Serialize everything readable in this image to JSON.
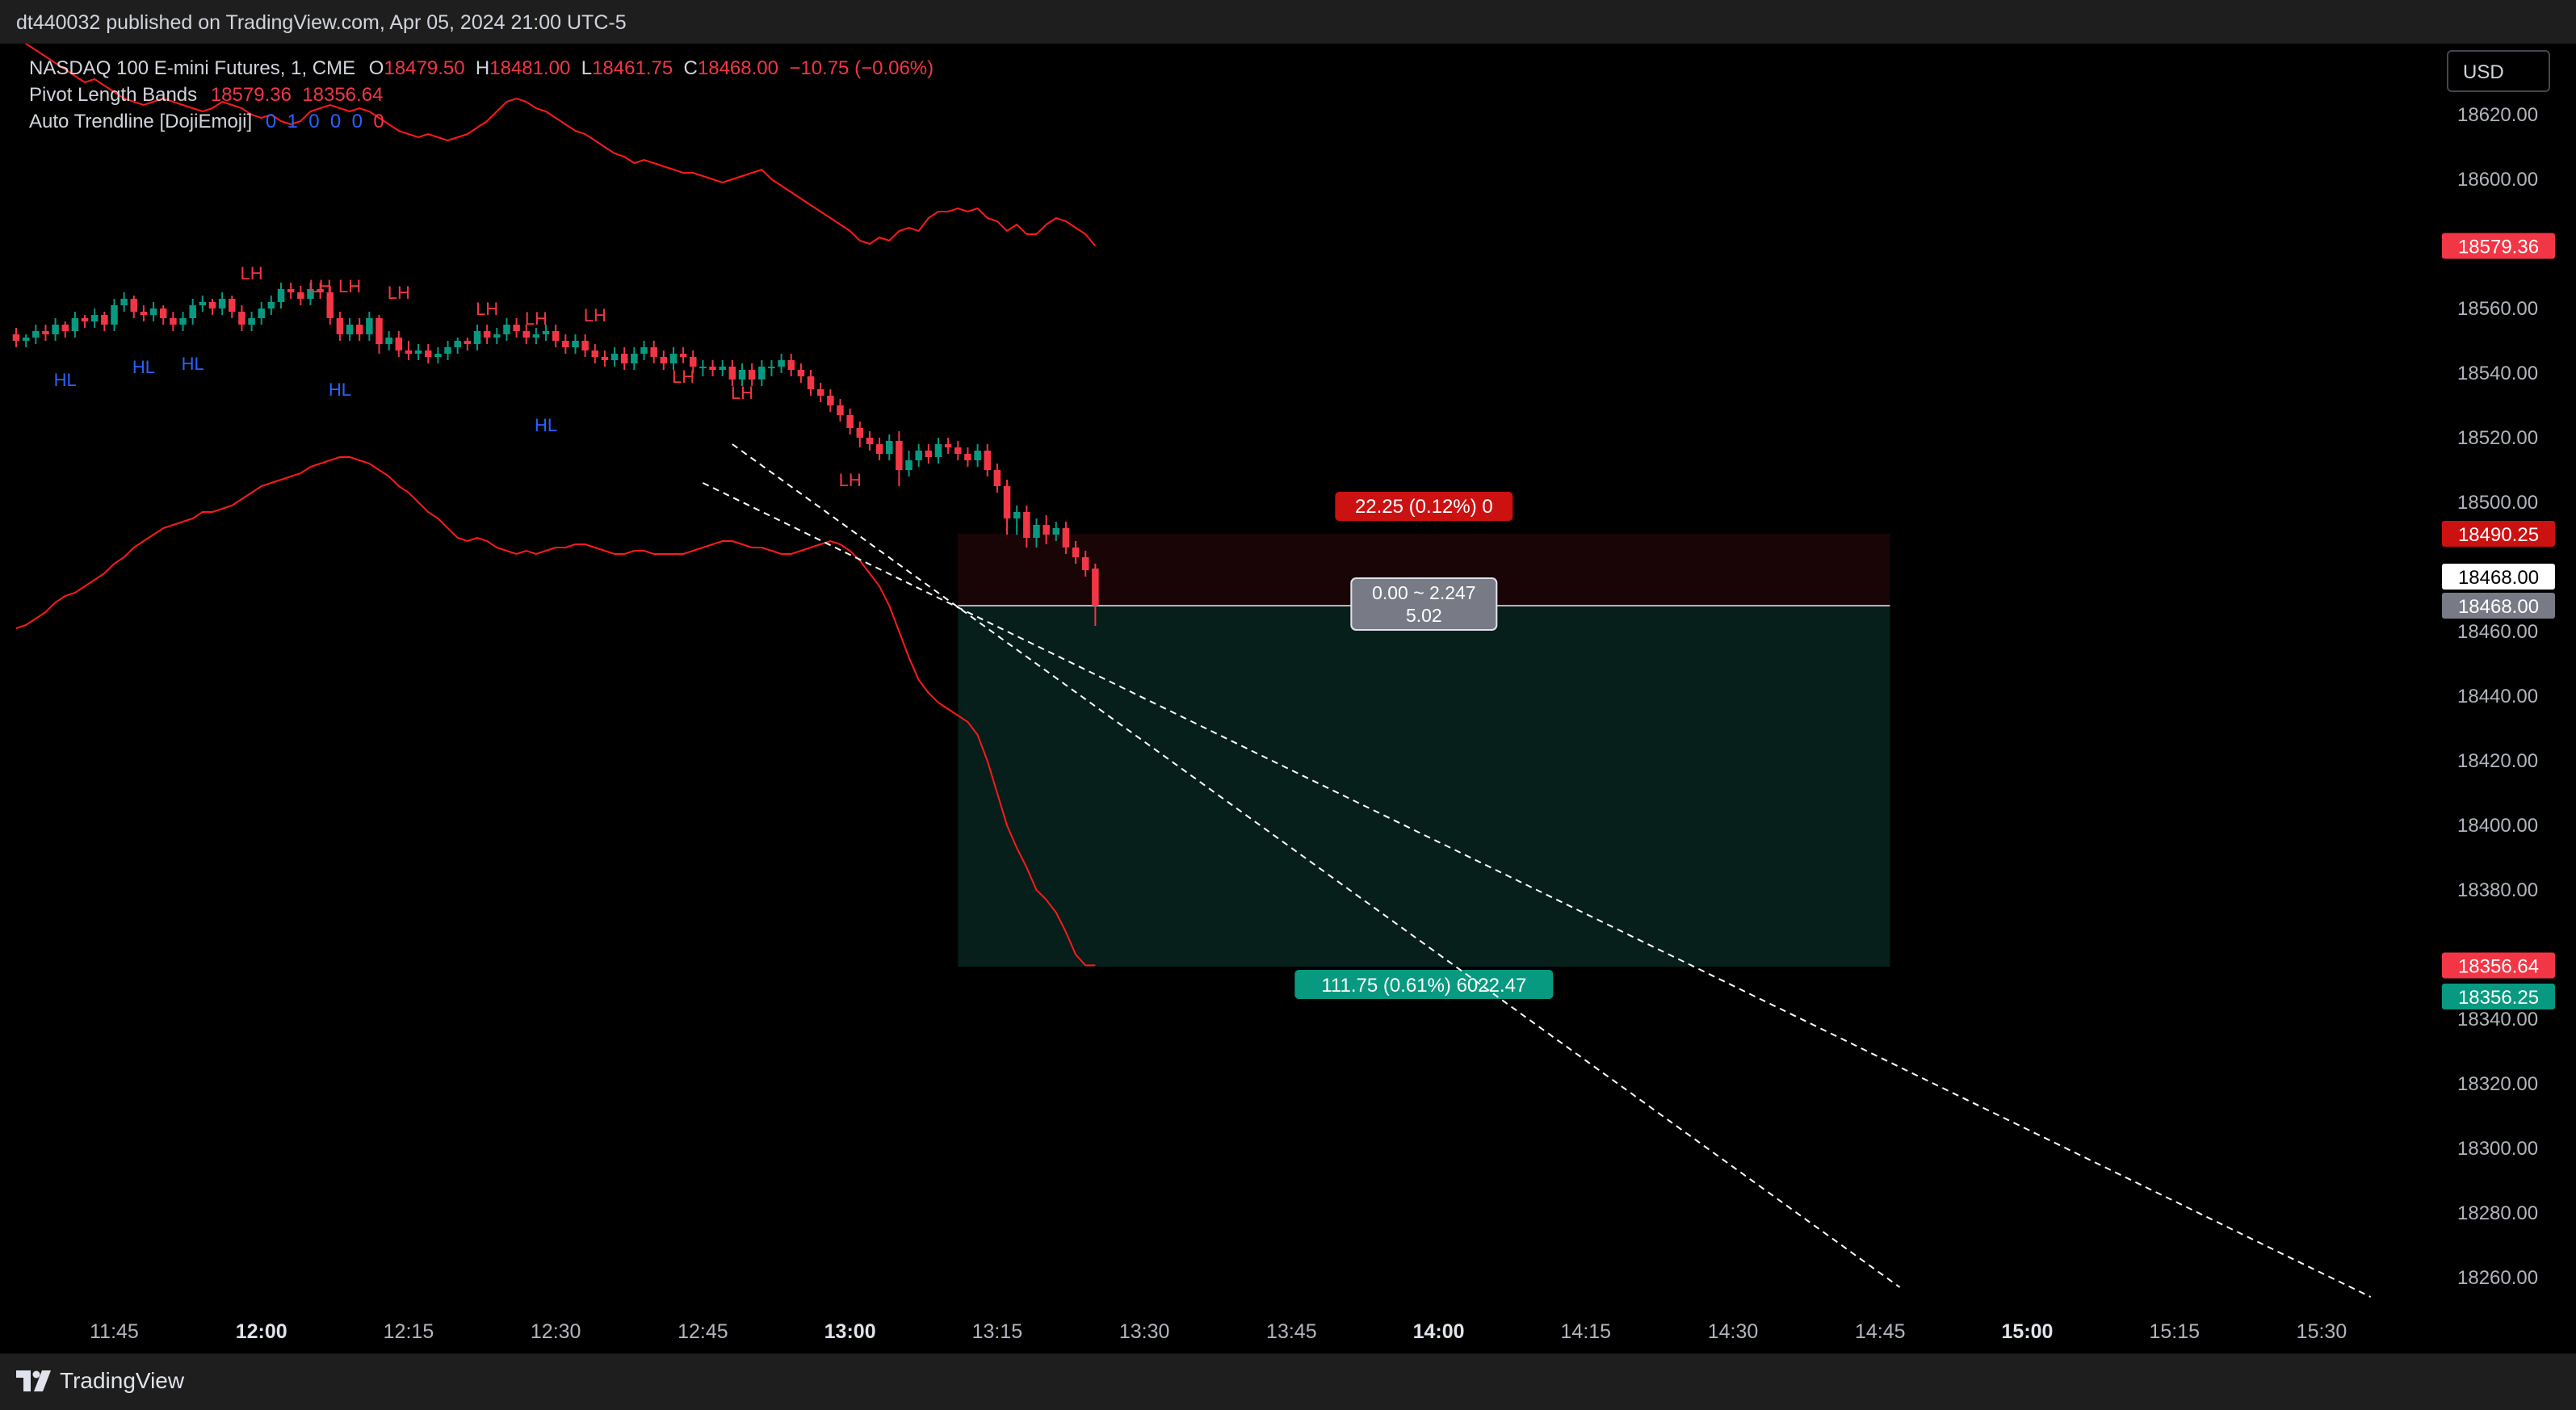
{
  "header": {
    "published": "dt440032 published on TradingView.com, Apr 05, 2024 21:00 UTC-5"
  },
  "footer": {
    "brand": "TradingView"
  },
  "currency": "USD",
  "legend": {
    "symbol": "NASDAQ 100 E-mini Futures, 1, CME",
    "open_label": "O",
    "open": "18479.50",
    "high_label": "H",
    "high": "18481.00",
    "low_label": "L",
    "low": "18461.75",
    "close_label": "C",
    "close": "18468.00",
    "change": "−10.75 (−0.06%)",
    "ind1_name": "Pivot Length Bands",
    "ind1_v1": "18579.36",
    "ind1_v2": "18356.64",
    "ind2_name": "Auto Trendline [DojiEmoji]",
    "ind2_vals": [
      "0",
      "1",
      "0",
      "0",
      "0",
      "0"
    ]
  },
  "colors": {
    "up": "#089981",
    "down": "#f23645",
    "band": "#ff1a1a",
    "hl": "#2962ff",
    "target": "#089981",
    "stop": "#cc1111"
  },
  "chart_data": {
    "type": "candlestick",
    "y_range": [
      18250,
      18642
    ],
    "y_ticks": [
      18620,
      18600,
      18580,
      18560,
      18540,
      18520,
      18500,
      18480,
      18460,
      18440,
      18420,
      18400,
      18380,
      18360,
      18340,
      18320,
      18300,
      18280,
      18260
    ],
    "y_tick_labels": [
      "18620.00",
      "18600.00",
      "18560.00",
      "18540.00",
      "18520.00",
      "18500.00",
      "18460.00",
      "18440.00",
      "18420.00",
      "18400.00",
      "18380.00",
      "18340.00",
      "18320.00",
      "18300.00",
      "18280.00",
      "18260.00"
    ],
    "y_tick_label_values": [
      18620,
      18600,
      18560,
      18540,
      18520,
      18500,
      18460,
      18440,
      18420,
      18400,
      18380,
      18340,
      18320,
      18300,
      18280,
      18260
    ],
    "x_range_minutes": [
      695,
      937
    ],
    "x_ticks": [
      {
        "t": 705,
        "label": "11:45",
        "bold": false
      },
      {
        "t": 720,
        "label": "12:00",
        "bold": true
      },
      {
        "t": 735,
        "label": "12:15",
        "bold": false
      },
      {
        "t": 750,
        "label": "12:30",
        "bold": false
      },
      {
        "t": 765,
        "label": "12:45",
        "bold": false
      },
      {
        "t": 780,
        "label": "13:00",
        "bold": true
      },
      {
        "t": 795,
        "label": "13:15",
        "bold": false
      },
      {
        "t": 810,
        "label": "13:30",
        "bold": false
      },
      {
        "t": 825,
        "label": "13:45",
        "bold": false
      },
      {
        "t": 840,
        "label": "14:00",
        "bold": true
      },
      {
        "t": 855,
        "label": "14:15",
        "bold": false
      },
      {
        "t": 870,
        "label": "14:30",
        "bold": false
      },
      {
        "t": 885,
        "label": "14:45",
        "bold": false
      },
      {
        "t": 900,
        "label": "15:00",
        "bold": true
      },
      {
        "t": 915,
        "label": "15:15",
        "bold": false
      },
      {
        "t": 930,
        "label": "15:30",
        "bold": false
      }
    ],
    "candles": {
      "start_t": 695,
      "close": [
        18550,
        18551,
        18553,
        18552,
        18555,
        18553,
        18557,
        18556,
        18558,
        18555,
        18561,
        18563,
        18559,
        18558,
        18560,
        18557,
        18555,
        18557,
        18561,
        18562,
        18560,
        18563,
        18559,
        18555,
        18557,
        18560,
        18562,
        18566,
        18565,
        18563,
        18566,
        18565,
        18557,
        18552,
        18555,
        18552,
        18557,
        18549,
        18551,
        18547,
        18546,
        18547,
        18545,
        18546,
        18548,
        18550,
        18549,
        18553,
        18551,
        18552,
        18555,
        18553,
        18551,
        18552,
        18553,
        18550,
        18548,
        18550,
        18547,
        18545,
        18544,
        18546,
        18543,
        18546,
        18548,
        18545,
        18543,
        18546,
        18545,
        18542,
        18542,
        18541,
        18542,
        18538,
        18541,
        18538,
        18542,
        18542,
        18544,
        18541,
        18539,
        18535,
        18533,
        18530,
        18527,
        18523,
        18520,
        18518,
        18515,
        18519,
        18510,
        18513,
        18516,
        18514,
        18518,
        18517,
        18515,
        18513,
        18516,
        18510,
        18505,
        18495,
        18497,
        18489,
        18493,
        18490,
        18492,
        18486,
        18483,
        18479,
        18468
      ],
      "open": [
        18552,
        18550,
        18551,
        18553,
        18552,
        18555,
        18553,
        18557,
        18556,
        18558,
        18555,
        18561,
        18563,
        18559,
        18558,
        18560,
        18557,
        18555,
        18557,
        18561,
        18562,
        18560,
        18563,
        18559,
        18555,
        18557,
        18560,
        18562,
        18566,
        18565,
        18563,
        18566,
        18565,
        18557,
        18552,
        18555,
        18552,
        18557,
        18549,
        18551,
        18547,
        18546,
        18547,
        18545,
        18546,
        18548,
        18550,
        18549,
        18553,
        18551,
        18552,
        18555,
        18553,
        18551,
        18552,
        18553,
        18550,
        18548,
        18550,
        18547,
        18545,
        18544,
        18546,
        18543,
        18546,
        18548,
        18545,
        18543,
        18546,
        18545,
        18542,
        18542,
        18541,
        18542,
        18538,
        18541,
        18538,
        18542,
        18542,
        18544,
        18541,
        18539,
        18535,
        18533,
        18530,
        18527,
        18523,
        18520,
        18518,
        18515,
        18519,
        18510,
        18513,
        18516,
        18514,
        18518,
        18517,
        18515,
        18513,
        18516,
        18510,
        18505,
        18495,
        18497,
        18489,
        18493,
        18490,
        18492,
        18486,
        18483,
        18479.5
      ],
      "high": [
        18554,
        18552,
        18555,
        18555,
        18557,
        18556,
        18559,
        18558,
        18560,
        18559,
        18563,
        18565,
        18564,
        18561,
        18562,
        18561,
        18559,
        18559,
        18563,
        18564,
        18563,
        18565,
        18564,
        18561,
        18559,
        18562,
        18564,
        18568,
        18568,
        18567,
        18568,
        18568,
        18567,
        18559,
        18557,
        18557,
        18559,
        18558,
        18553,
        18553,
        18550,
        18549,
        18549,
        18548,
        18550,
        18551,
        18551,
        18555,
        18555,
        18554,
        18557,
        18557,
        18555,
        18554,
        18555,
        18555,
        18552,
        18552,
        18552,
        18549,
        18547,
        18548,
        18548,
        18548,
        18550,
        18550,
        18547,
        18548,
        18548,
        18547,
        18544,
        18544,
        18544,
        18544,
        18543,
        18543,
        18544,
        18544,
        18546,
        18546,
        18543,
        18541,
        18537,
        18535,
        18532,
        18529,
        18525,
        18522,
        18520,
        18521,
        18522,
        18516,
        18518,
        18518,
        18520,
        18520,
        18519,
        18517,
        18518,
        18518,
        18512,
        18507,
        18499,
        18499,
        18495,
        18496,
        18494,
        18494,
        18488,
        18485,
        18481
      ],
      "low": [
        18548,
        18548,
        18549,
        18550,
        18550,
        18551,
        18551,
        18554,
        18554,
        18553,
        18553,
        18559,
        18557,
        18556,
        18556,
        18555,
        18553,
        18553,
        18555,
        18559,
        18558,
        18558,
        18557,
        18553,
        18553,
        18555,
        18558,
        18560,
        18563,
        18561,
        18561,
        18563,
        18555,
        18550,
        18550,
        18550,
        18550,
        18546,
        18547,
        18545,
        18544,
        18544,
        18543,
        18543,
        18544,
        18546,
        18547,
        18547,
        18549,
        18549,
        18550,
        18551,
        18549,
        18549,
        18550,
        18548,
        18546,
        18546,
        18545,
        18543,
        18542,
        18542,
        18541,
        18541,
        18544,
        18543,
        18541,
        18541,
        18543,
        18540,
        18539,
        18539,
        18539,
        18536,
        18536,
        18536,
        18536,
        18539,
        18540,
        18539,
        18537,
        18533,
        18531,
        18528,
        18525,
        18521,
        18517,
        18516,
        18513,
        18513,
        18505,
        18508,
        18511,
        18512,
        18512,
        18515,
        18513,
        18511,
        18511,
        18508,
        18503,
        18490,
        18490,
        18486,
        18486,
        18487,
        18488,
        18484,
        18481,
        18477,
        18461.75
      ]
    },
    "band_upper": {
      "start_t": 695,
      "values": [
        18644,
        18642,
        18640,
        18638,
        18636,
        18634,
        18632,
        18630,
        18631,
        18629,
        18627,
        18625,
        18624,
        18623,
        18624,
        18625,
        18624,
        18623,
        18622,
        18621,
        18622,
        18624,
        18623,
        18622,
        18620,
        18619,
        18620,
        18618,
        18617,
        18618,
        18621,
        18622,
        18623,
        18622,
        18621,
        18622,
        18621,
        18619,
        18617,
        18615,
        18614,
        18613,
        18614,
        18613,
        18612,
        18613,
        18614,
        18616,
        18618,
        18621,
        18624,
        18625,
        18624,
        18622,
        18621,
        18619,
        18617,
        18615,
        18614,
        18612,
        18610,
        18608,
        18607,
        18605,
        18606,
        18605,
        18604,
        18603,
        18602,
        18602,
        18601,
        18600,
        18599,
        18600,
        18601,
        18602,
        18603,
        18600,
        18598,
        18596,
        18594,
        18592,
        18590,
        18588,
        18586,
        18584,
        18581,
        18580,
        18582,
        18581,
        18584,
        18585,
        18584,
        18588,
        18590,
        18590,
        18591,
        18590,
        18591,
        18588,
        18587,
        18584,
        18586,
        18583,
        18583,
        18586,
        18588,
        18587,
        18585,
        18583,
        18579.36
      ]
    },
    "band_lower": {
      "start_t": 695,
      "values": [
        18461,
        18462,
        18464,
        18466,
        18469,
        18471,
        18472,
        18474,
        18476,
        18478,
        18481,
        18483,
        18486,
        18488,
        18490,
        18492,
        18493,
        18494,
        18495,
        18497,
        18497,
        18498,
        18499,
        18501,
        18503,
        18505,
        18506,
        18507,
        18508,
        18509,
        18511,
        18512,
        18513,
        18514,
        18514,
        18513,
        18512,
        18510,
        18508,
        18505,
        18503,
        18500,
        18497,
        18495,
        18492,
        18489,
        18488,
        18489,
        18488,
        18486,
        18485,
        18484,
        18485,
        18484,
        18485,
        18486,
        18486,
        18487,
        18487,
        18486,
        18485,
        18484,
        18484,
        18485,
        18485,
        18484,
        18484,
        18484,
        18484,
        18485,
        18486,
        18487,
        18488,
        18488,
        18487,
        18486,
        18486,
        18485,
        18484,
        18484,
        18485,
        18486,
        18487,
        18488,
        18487,
        18485,
        18482,
        18478,
        18474,
        18468,
        18460,
        18452,
        18445,
        18441,
        18438,
        18436,
        18434,
        18432,
        18428,
        18420,
        18410,
        18400,
        18393,
        18387,
        18380,
        18377,
        18373,
        18367,
        18360,
        18356.64,
        18356.64
      ]
    },
    "pivot_labels": [
      {
        "text": "LH",
        "t": 719,
        "price": 18569,
        "kind": "LH"
      },
      {
        "text": "LH",
        "t": 726,
        "price": 18565,
        "kind": "LH"
      },
      {
        "text": "LH",
        "t": 729,
        "price": 18565,
        "kind": "LH"
      },
      {
        "text": "LH",
        "t": 734,
        "price": 18563,
        "kind": "LH"
      },
      {
        "text": "LH",
        "t": 743,
        "price": 18558,
        "kind": "LH"
      },
      {
        "text": "LH",
        "t": 748,
        "price": 18555,
        "kind": "LH"
      },
      {
        "text": "LH",
        "t": 754,
        "price": 18556,
        "kind": "LH"
      },
      {
        "text": "LH",
        "t": 763,
        "price": 18537,
        "kind": "LH"
      },
      {
        "text": "LH",
        "t": 769,
        "price": 18532,
        "kind": "LH"
      },
      {
        "text": "LH",
        "t": 780,
        "price": 18505,
        "kind": "LH"
      },
      {
        "text": "HL",
        "t": 700,
        "price": 18536,
        "kind": "HL"
      },
      {
        "text": "HL",
        "t": 708,
        "price": 18540,
        "kind": "HL"
      },
      {
        "text": "HL",
        "t": 713,
        "price": 18541,
        "kind": "HL"
      },
      {
        "text": "HL",
        "t": 728,
        "price": 18533,
        "kind": "HL"
      },
      {
        "text": "HL",
        "t": 749,
        "price": 18522,
        "kind": "HL"
      }
    ],
    "trendlines": [
      {
        "t1": 765,
        "p1": 18506,
        "t2": 935,
        "p2": 18254
      },
      {
        "t1": 768,
        "p1": 18518,
        "t2": 887,
        "p2": 18257
      }
    ],
    "position": {
      "t_start": 791,
      "t_end": 886,
      "entry": 18468.0,
      "stop": 18490.25,
      "target": 18356.25,
      "stop_label": "22.25 (0.12%) 0",
      "target_label": "111.75 (0.61%) 6022.47",
      "rr_line1": "0.00 ~ 2.247",
      "rr_line2": "5.02"
    },
    "price_tags": [
      {
        "label": "18579.36",
        "price": 18579.36,
        "bg": "#f23645",
        "fg": "#ffffff"
      },
      {
        "label": "18490.25",
        "price": 18490.25,
        "bg": "#cc1111",
        "fg": "#ffffff"
      },
      {
        "label": "18468.00",
        "price": 18477,
        "bg": "#ffffff",
        "fg": "#000000"
      },
      {
        "label": "18468.00",
        "price": 18468.0,
        "bg": "#787b86",
        "fg": "#ffffff"
      },
      {
        "label": "18356.64",
        "price": 18356.64,
        "bg": "#f23645",
        "fg": "#ffffff"
      },
      {
        "label": "18356.25",
        "price": 18347,
        "bg": "#089981",
        "fg": "#ffffff"
      }
    ]
  }
}
